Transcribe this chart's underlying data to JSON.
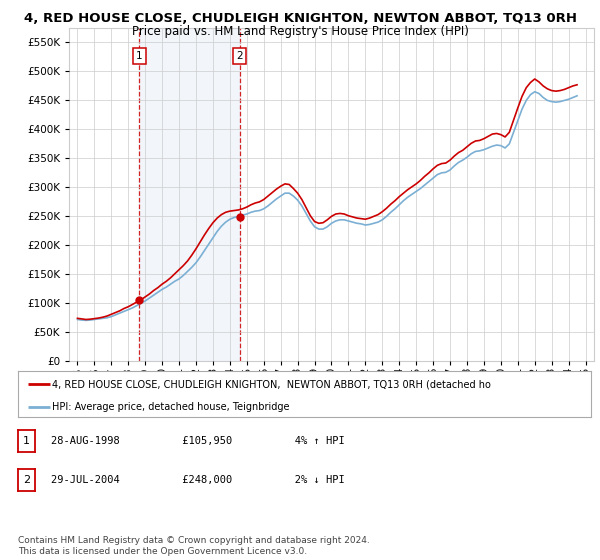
{
  "title": "4, RED HOUSE CLOSE, CHUDLEIGH KNIGHTON, NEWTON ABBOT, TQ13 0RH",
  "subtitle": "Price paid vs. HM Land Registry's House Price Index (HPI)",
  "ytick_values": [
    0,
    50000,
    100000,
    150000,
    200000,
    250000,
    300000,
    350000,
    400000,
    450000,
    500000,
    550000
  ],
  "ylim": [
    0,
    575000
  ],
  "xlim_start": 1994.5,
  "xlim_end": 2025.5,
  "xtick_years": [
    1995,
    1996,
    1997,
    1998,
    1999,
    2000,
    2001,
    2002,
    2003,
    2004,
    2005,
    2006,
    2007,
    2008,
    2009,
    2010,
    2011,
    2012,
    2013,
    2014,
    2015,
    2016,
    2017,
    2018,
    2019,
    2020,
    2021,
    2022,
    2023,
    2024,
    2025
  ],
  "sale_dates": [
    1998.65,
    2004.57
  ],
  "sale_prices": [
    105950,
    248000
  ],
  "sale_labels": [
    "1",
    "2"
  ],
  "sale_info": [
    {
      "label": "1",
      "date": "28-AUG-1998",
      "price": "£105,950",
      "hpi": "4% ↑ HPI"
    },
    {
      "label": "2",
      "date": "29-JUL-2004",
      "price": "£248,000",
      "hpi": "2% ↓ HPI"
    }
  ],
  "legend_line1": "4, RED HOUSE CLOSE, CHUDLEIGH KNIGHTON,  NEWTON ABBOT, TQ13 0RH (detached ho",
  "legend_line2": "HPI: Average price, detached house, Teignbridge",
  "footer": "Contains HM Land Registry data © Crown copyright and database right 2024.\nThis data is licensed under the Open Government Licence v3.0.",
  "property_line_color": "#cc0000",
  "hpi_line_color": "#7bafd4",
  "sale_marker_color": "#cc0000",
  "background_color": "#ffffff",
  "plot_bg_color": "#ffffff",
  "shaded_region_color": "#ccddf0",
  "grid_color": "#cccccc",
  "title_fontsize": 9.5,
  "subtitle_fontsize": 8.5,
  "tick_fontsize": 7.5,
  "hpi_data_x": [
    1995.0,
    1995.25,
    1995.5,
    1995.75,
    1996.0,
    1996.25,
    1996.5,
    1996.75,
    1997.0,
    1997.25,
    1997.5,
    1997.75,
    1998.0,
    1998.25,
    1998.5,
    1998.75,
    1999.0,
    1999.25,
    1999.5,
    1999.75,
    2000.0,
    2000.25,
    2000.5,
    2000.75,
    2001.0,
    2001.25,
    2001.5,
    2001.75,
    2002.0,
    2002.25,
    2002.5,
    2002.75,
    2003.0,
    2003.25,
    2003.5,
    2003.75,
    2004.0,
    2004.25,
    2004.5,
    2004.75,
    2005.0,
    2005.25,
    2005.5,
    2005.75,
    2006.0,
    2006.25,
    2006.5,
    2006.75,
    2007.0,
    2007.25,
    2007.5,
    2007.75,
    2008.0,
    2008.25,
    2008.5,
    2008.75,
    2009.0,
    2009.25,
    2009.5,
    2009.75,
    2010.0,
    2010.25,
    2010.5,
    2010.75,
    2011.0,
    2011.25,
    2011.5,
    2011.75,
    2012.0,
    2012.25,
    2012.5,
    2012.75,
    2013.0,
    2013.25,
    2013.5,
    2013.75,
    2014.0,
    2014.25,
    2014.5,
    2014.75,
    2015.0,
    2015.25,
    2015.5,
    2015.75,
    2016.0,
    2016.25,
    2016.5,
    2016.75,
    2017.0,
    2017.25,
    2017.5,
    2017.75,
    2018.0,
    2018.25,
    2018.5,
    2018.75,
    2019.0,
    2019.25,
    2019.5,
    2019.75,
    2020.0,
    2020.25,
    2020.5,
    2020.75,
    2021.0,
    2021.25,
    2021.5,
    2021.75,
    2022.0,
    2022.25,
    2022.5,
    2022.75,
    2023.0,
    2023.25,
    2023.5,
    2023.75,
    2024.0,
    2024.25,
    2024.5
  ],
  "hpi_data_y": [
    72000,
    71000,
    70500,
    71000,
    72000,
    73000,
    74000,
    75000,
    77000,
    80000,
    83000,
    86000,
    89000,
    92000,
    96000,
    100000,
    104000,
    109000,
    114000,
    119000,
    124000,
    128000,
    133000,
    138000,
    142000,
    148000,
    155000,
    162000,
    170000,
    180000,
    191000,
    202000,
    213000,
    224000,
    233000,
    240000,
    245000,
    248000,
    250000,
    252000,
    254000,
    257000,
    259000,
    260000,
    263000,
    268000,
    274000,
    280000,
    285000,
    290000,
    290000,
    285000,
    278000,
    268000,
    255000,
    242000,
    232000,
    228000,
    228000,
    232000,
    238000,
    242000,
    244000,
    244000,
    242000,
    240000,
    238000,
    237000,
    235000,
    236000,
    238000,
    240000,
    244000,
    250000,
    257000,
    263000,
    270000,
    277000,
    283000,
    288000,
    293000,
    298000,
    304000,
    310000,
    316000,
    322000,
    325000,
    326000,
    330000,
    337000,
    343000,
    347000,
    352000,
    358000,
    362000,
    363000,
    365000,
    368000,
    371000,
    373000,
    372000,
    368000,
    375000,
    395000,
    415000,
    435000,
    450000,
    460000,
    465000,
    462000,
    455000,
    450000,
    448000,
    447000,
    448000,
    450000,
    452000,
    455000,
    458000
  ],
  "property_data_x": [
    1995.0,
    1995.25,
    1995.5,
    1995.75,
    1996.0,
    1996.25,
    1996.5,
    1996.75,
    1997.0,
    1997.25,
    1997.5,
    1997.75,
    1998.0,
    1998.25,
    1998.5,
    1998.75,
    1999.0,
    1999.25,
    1999.5,
    1999.75,
    2000.0,
    2000.25,
    2000.5,
    2000.75,
    2001.0,
    2001.25,
    2001.5,
    2001.75,
    2002.0,
    2002.25,
    2002.5,
    2002.75,
    2003.0,
    2003.25,
    2003.5,
    2003.75,
    2004.0,
    2004.25,
    2004.5,
    2004.75,
    2005.0,
    2005.25,
    2005.5,
    2005.75,
    2006.0,
    2006.25,
    2006.5,
    2006.75,
    2007.0,
    2007.25,
    2007.5,
    2007.75,
    2008.0,
    2008.25,
    2008.5,
    2008.75,
    2009.0,
    2009.25,
    2009.5,
    2009.75,
    2010.0,
    2010.25,
    2010.5,
    2010.75,
    2011.0,
    2011.25,
    2011.5,
    2011.75,
    2012.0,
    2012.25,
    2012.5,
    2012.75,
    2013.0,
    2013.25,
    2013.5,
    2013.75,
    2014.0,
    2014.25,
    2014.5,
    2014.75,
    2015.0,
    2015.25,
    2015.5,
    2015.75,
    2016.0,
    2016.25,
    2016.5,
    2016.75,
    2017.0,
    2017.25,
    2017.5,
    2017.75,
    2018.0,
    2018.25,
    2018.5,
    2018.75,
    2019.0,
    2019.25,
    2019.5,
    2019.75,
    2020.0,
    2020.25,
    2020.5,
    2020.75,
    2021.0,
    2021.25,
    2021.5,
    2021.75,
    2022.0,
    2022.25,
    2022.5,
    2022.75,
    2023.0,
    2023.25,
    2023.5,
    2023.75,
    2024.0,
    2024.25,
    2024.5
  ],
  "property_data_y": [
    74000,
    73000,
    72000,
    72500,
    73500,
    74500,
    76000,
    78000,
    81000,
    84000,
    87000,
    91000,
    94000,
    98000,
    102000,
    106000,
    111000,
    116000,
    122000,
    127000,
    133000,
    138000,
    144000,
    151000,
    158000,
    165000,
    173000,
    183000,
    194000,
    206000,
    218000,
    229000,
    239000,
    247000,
    253000,
    257000,
    259000,
    260000,
    261000,
    263000,
    266000,
    270000,
    273000,
    275000,
    279000,
    285000,
    291000,
    297000,
    302000,
    306000,
    305000,
    298000,
    290000,
    279000,
    265000,
    251000,
    241000,
    238000,
    239000,
    244000,
    250000,
    254000,
    255000,
    254000,
    251000,
    249000,
    247000,
    246000,
    245000,
    247000,
    250000,
    253000,
    258000,
    264000,
    271000,
    277000,
    284000,
    290000,
    296000,
    301000,
    306000,
    312000,
    319000,
    325000,
    332000,
    338000,
    341000,
    342000,
    347000,
    354000,
    360000,
    364000,
    370000,
    376000,
    380000,
    381000,
    384000,
    388000,
    392000,
    393000,
    391000,
    387000,
    395000,
    416000,
    437000,
    457000,
    472000,
    481000,
    487000,
    482000,
    475000,
    470000,
    467000,
    466000,
    467000,
    469000,
    472000,
    475000,
    477000
  ]
}
